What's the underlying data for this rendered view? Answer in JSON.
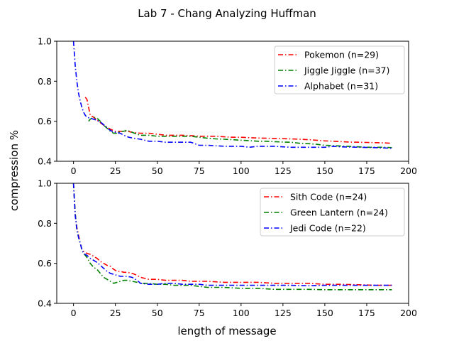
{
  "figure": {
    "suptitle": "Lab 7 - Chang Analyzing Huffman",
    "ylabel": "compression %",
    "xlabel": "length of message"
  },
  "chart_data": [
    {
      "type": "line",
      "xlim": [
        -10,
        200
      ],
      "ylim": [
        0.4,
        1.0
      ],
      "xticks": [
        0,
        25,
        50,
        75,
        100,
        125,
        150,
        175,
        200
      ],
      "yticks": [
        0.4,
        0.6,
        0.8,
        1.0
      ],
      "xtick_labels": [
        "0",
        "25",
        "50",
        "75",
        "100",
        "125",
        "150",
        "175",
        "200"
      ],
      "ytick_labels": [
        "0.4",
        "0.6",
        "0.8",
        "1.0"
      ],
      "legend_position": "top-right",
      "series": [
        {
          "name": "Pokemon (n=29)",
          "color": "#ff0000",
          "x": [
            7,
            8,
            10,
            12,
            15,
            18,
            20,
            22,
            25,
            28,
            30,
            32,
            35,
            40,
            45,
            50,
            55,
            60,
            65,
            70,
            75,
            80,
            85,
            90,
            95,
            100,
            105,
            110,
            115,
            120,
            125,
            130,
            135,
            140,
            145,
            150,
            155,
            160,
            165,
            170,
            175,
            180,
            185,
            190
          ],
          "y": [
            0.72,
            0.71,
            0.63,
            0.62,
            0.6,
            0.58,
            0.57,
            0.56,
            0.55,
            0.55,
            0.55,
            0.55,
            0.545,
            0.54,
            0.54,
            0.535,
            0.53,
            0.53,
            0.53,
            0.528,
            0.525,
            0.525,
            0.525,
            0.522,
            0.52,
            0.52,
            0.518,
            0.516,
            0.515,
            0.514,
            0.513,
            0.512,
            0.51,
            0.508,
            0.505,
            0.502,
            0.5,
            0.498,
            0.496,
            0.495,
            0.494,
            0.493,
            0.492,
            0.49
          ]
        },
        {
          "name": "Jiggle Jiggle (n=37)",
          "color": "#008000",
          "x": [
            9,
            10,
            12,
            14,
            16,
            18,
            20,
            22,
            24,
            26,
            28,
            30,
            32,
            35,
            38,
            40,
            45,
            50,
            55,
            60,
            65,
            70,
            75,
            80,
            85,
            90,
            95,
            100,
            105,
            110,
            115,
            120,
            125,
            130,
            135,
            140,
            145,
            150,
            155,
            160,
            165,
            170,
            175,
            180,
            185,
            190
          ],
          "y": [
            0.6,
            0.61,
            0.62,
            0.615,
            0.6,
            0.58,
            0.565,
            0.55,
            0.54,
            0.54,
            0.55,
            0.55,
            0.555,
            0.545,
            0.535,
            0.53,
            0.53,
            0.525,
            0.525,
            0.525,
            0.525,
            0.525,
            0.52,
            0.515,
            0.512,
            0.51,
            0.508,
            0.505,
            0.503,
            0.5,
            0.5,
            0.498,
            0.496,
            0.495,
            0.49,
            0.488,
            0.485,
            0.48,
            0.478,
            0.476,
            0.474,
            0.472,
            0.47,
            0.47,
            0.47,
            0.468
          ]
        },
        {
          "name": "Alphabet (n=31)",
          "color": "#0000ff",
          "x": [
            0,
            1,
            2,
            3,
            4,
            5,
            6,
            7,
            8,
            10,
            12,
            14,
            15,
            17,
            19,
            21,
            23,
            25,
            28,
            30,
            33,
            36,
            40,
            45,
            50,
            55,
            60,
            65,
            70,
            75,
            80,
            90,
            100,
            105,
            110,
            115,
            120,
            125,
            130,
            140,
            150,
            155,
            160,
            170,
            180,
            190
          ],
          "y": [
            1.0,
            0.88,
            0.8,
            0.74,
            0.7,
            0.67,
            0.645,
            0.63,
            0.62,
            0.615,
            0.61,
            0.605,
            0.6,
            0.59,
            0.575,
            0.56,
            0.55,
            0.545,
            0.54,
            0.53,
            0.52,
            0.515,
            0.51,
            0.5,
            0.5,
            0.495,
            0.495,
            0.495,
            0.495,
            0.48,
            0.48,
            0.475,
            0.475,
            0.47,
            0.475,
            0.475,
            0.475,
            0.472,
            0.47,
            0.47,
            0.47,
            0.475,
            0.472,
            0.47,
            0.468,
            0.465
          ]
        }
      ]
    },
    {
      "type": "line",
      "xlim": [
        -10,
        200
      ],
      "ylim": [
        0.4,
        1.0
      ],
      "xticks": [
        0,
        25,
        50,
        75,
        100,
        125,
        150,
        175,
        200
      ],
      "yticks": [
        0.4,
        0.6,
        0.8,
        1.0
      ],
      "xtick_labels": [
        "0",
        "25",
        "50",
        "75",
        "100",
        "125",
        "150",
        "175",
        "200"
      ],
      "ytick_labels": [
        "0.4",
        "0.6",
        "0.8",
        "1.0"
      ],
      "legend_position": "top-right",
      "series": [
        {
          "name": "Sith Code (n=24)",
          "color": "#ff0000",
          "x": [
            0,
            1,
            2,
            3,
            4,
            5,
            6,
            8,
            10,
            12,
            14,
            16,
            18,
            20,
            22,
            24,
            26,
            28,
            30,
            32,
            35,
            38,
            40,
            45,
            50,
            55,
            60,
            65,
            70,
            75,
            80,
            90,
            100,
            110,
            120,
            130,
            140,
            150,
            160,
            170,
            180,
            190
          ],
          "y": [
            1.0,
            0.85,
            0.78,
            0.74,
            0.7,
            0.67,
            0.66,
            0.65,
            0.645,
            0.635,
            0.625,
            0.61,
            0.6,
            0.59,
            0.585,
            0.57,
            0.56,
            0.56,
            0.555,
            0.555,
            0.55,
            0.54,
            0.53,
            0.52,
            0.52,
            0.515,
            0.515,
            0.515,
            0.51,
            0.51,
            0.51,
            0.505,
            0.505,
            0.505,
            0.5,
            0.5,
            0.5,
            0.495,
            0.495,
            0.493,
            0.49,
            0.49
          ]
        },
        {
          "name": "Green Lantern (n=24)",
          "color": "#008000",
          "x": [
            0,
            1,
            2,
            3,
            4,
            5,
            6,
            8,
            10,
            12,
            14,
            16,
            18,
            20,
            22,
            24,
            26,
            28,
            30,
            32,
            35,
            38,
            40,
            45,
            50,
            55,
            60,
            65,
            70,
            75,
            80,
            90,
            100,
            110,
            120,
            130,
            140,
            150,
            160,
            170,
            180,
            190
          ],
          "y": [
            1.0,
            0.85,
            0.77,
            0.73,
            0.7,
            0.67,
            0.65,
            0.63,
            0.6,
            0.58,
            0.57,
            0.55,
            0.53,
            0.52,
            0.51,
            0.5,
            0.505,
            0.51,
            0.515,
            0.515,
            0.51,
            0.505,
            0.5,
            0.5,
            0.495,
            0.495,
            0.49,
            0.49,
            0.49,
            0.485,
            0.48,
            0.48,
            0.475,
            0.475,
            0.47,
            0.47,
            0.47,
            0.468,
            0.468,
            0.468,
            0.468,
            0.468
          ]
        },
        {
          "name": "Jedi Code (n=22)",
          "color": "#0000ff",
          "x": [
            0,
            1,
            2,
            3,
            4,
            5,
            6,
            8,
            10,
            12,
            14,
            16,
            18,
            20,
            22,
            24,
            26,
            28,
            30,
            32,
            35,
            38,
            40,
            45,
            50,
            55,
            60,
            65,
            70,
            75,
            80,
            90,
            100,
            110,
            120,
            130,
            140,
            150,
            160,
            170,
            180,
            190
          ],
          "y": [
            1.0,
            0.84,
            0.77,
            0.73,
            0.7,
            0.67,
            0.65,
            0.64,
            0.625,
            0.615,
            0.605,
            0.59,
            0.575,
            0.56,
            0.55,
            0.545,
            0.54,
            0.535,
            0.535,
            0.535,
            0.53,
            0.515,
            0.5,
            0.495,
            0.495,
            0.5,
            0.5,
            0.495,
            0.495,
            0.495,
            0.49,
            0.49,
            0.49,
            0.49,
            0.49,
            0.49,
            0.488,
            0.49,
            0.49,
            0.49,
            0.49,
            0.49
          ]
        }
      ]
    }
  ]
}
